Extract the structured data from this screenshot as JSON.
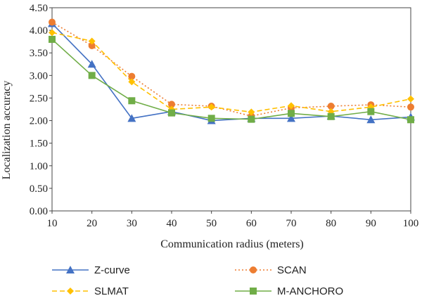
{
  "chart_data": {
    "type": "line",
    "title": "",
    "xlabel": "Communication radius (meters)",
    "ylabel": "Localization accuracy",
    "x": [
      10,
      20,
      30,
      40,
      50,
      60,
      70,
      80,
      90,
      100
    ],
    "x_tick_labels": [
      "10",
      "20",
      "30",
      "40",
      "50",
      "60",
      "70",
      "80",
      "90",
      "100"
    ],
    "y_tick_labels": [
      "0.00",
      "0.50",
      "1.00",
      "1.50",
      "2.00",
      "2.50",
      "3.00",
      "3.50",
      "4.00",
      "4.50"
    ],
    "xlim": [
      10,
      100
    ],
    "ylim": [
      0,
      4.5
    ],
    "grid": false,
    "legend_position": "bottom",
    "series": [
      {
        "name": "Z-curve",
        "values": [
          4.15,
          3.25,
          2.05,
          2.2,
          2.0,
          2.05,
          2.05,
          2.1,
          2.02,
          2.08
        ],
        "color": "#4472C4",
        "marker": "triangle",
        "dash": "solid"
      },
      {
        "name": "SCAN",
        "values": [
          4.18,
          3.66,
          2.98,
          2.36,
          2.32,
          2.1,
          2.28,
          2.32,
          2.35,
          2.3
        ],
        "color": "#ED7D31",
        "marker": "circle",
        "dash": "dotted"
      },
      {
        "name": "SLMAT",
        "values": [
          3.95,
          3.76,
          2.86,
          2.25,
          2.3,
          2.19,
          2.33,
          2.2,
          2.3,
          2.48
        ],
        "color": "#FFC000",
        "marker": "diamond",
        "dash": "dashed"
      },
      {
        "name": "M-ANCHORO",
        "values": [
          3.8,
          3.0,
          2.44,
          2.17,
          2.05,
          2.03,
          2.16,
          2.09,
          2.2,
          2.02
        ],
        "color": "#70AD47",
        "marker": "square",
        "dash": "solid"
      }
    ]
  }
}
